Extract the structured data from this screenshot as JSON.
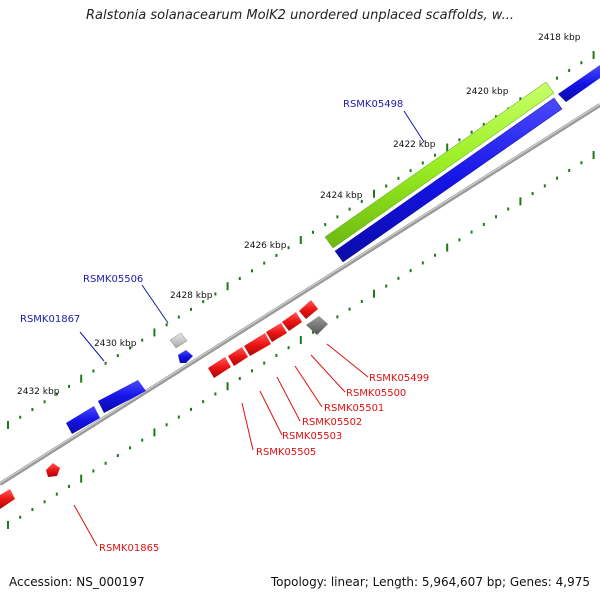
{
  "title": "Ralstonia solanacearum MolK2 unordered unplaced scaffolds, w...",
  "footer": {
    "accession_label": "Accession:",
    "accession": "NS_000197",
    "stats": "Topology: linear; Length: 5,964,607 bp; Genes: 4,975"
  },
  "axis": {
    "ticks": [
      "2418 kbp",
      "2420 kbp",
      "2422 kbp",
      "2424 kbp",
      "2426 kbp",
      "2428 kbp",
      "2430 kbp",
      "2432 kbp"
    ]
  },
  "genes": {
    "labels_top": [
      "RSMK05498",
      "RSMK05506",
      "RSMK01867"
    ],
    "labels_bottom": [
      "RSMK05499",
      "RSMK05500",
      "RSMK05501",
      "RSMK05502",
      "RSMK05503",
      "RSMK05505",
      "RSMK01865"
    ]
  },
  "colors": {
    "forward_gene": "#1010e0",
    "reverse_gene": "#ee1111",
    "highlight_gene": "#99ee22",
    "backbone": "#808080",
    "tick_mark": "#1a7a1a",
    "label_top": "#1a1aaa",
    "label_bottom": "#dd1111"
  }
}
